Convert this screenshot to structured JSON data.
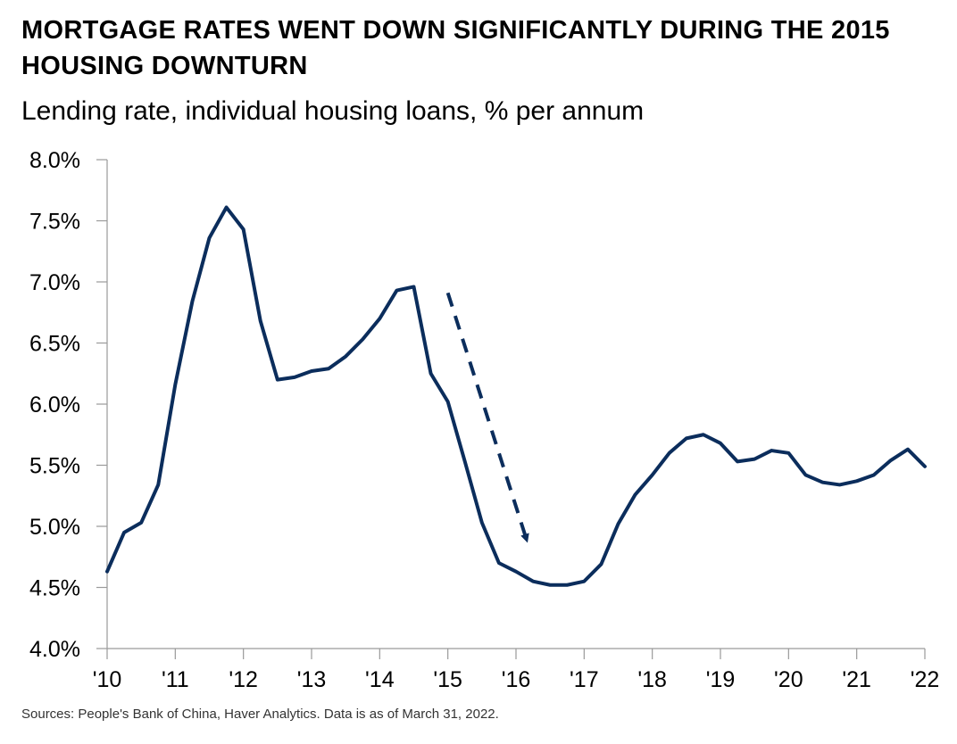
{
  "title": "MORTGAGE RATES WENT DOWN SIGNIFICANTLY DURING THE 2015 HOUSING DOWNTURN",
  "subtitle": "Lending rate, individual housing loans, % per annum",
  "source": "Sources: People's Bank of China, Haver Analytics. Data is as of March 31, 2022.",
  "colors": {
    "line": "#0b2d5c",
    "axis": "#9a9a9a"
  },
  "chart_data": {
    "type": "line",
    "title": "MORTGAGE RATES WENT DOWN SIGNIFICANTLY DURING THE 2015 HOUSING DOWNTURN",
    "subtitle": "Lending rate, individual housing loans, % per annum",
    "xlabel": "",
    "ylabel": "",
    "xlim": [
      2010,
      2022
    ],
    "ylim": [
      4.0,
      8.0
    ],
    "y_ticks": [
      4.0,
      4.5,
      5.0,
      5.5,
      6.0,
      6.5,
      7.0,
      7.5,
      8.0
    ],
    "y_tick_labels": [
      "4.0%",
      "4.5%",
      "5.0%",
      "5.5%",
      "6.0%",
      "6.5%",
      "7.0%",
      "7.5%",
      "8.0%"
    ],
    "x_ticks": [
      2010,
      2011,
      2012,
      2013,
      2014,
      2015,
      2016,
      2017,
      2018,
      2019,
      2020,
      2021,
      2022
    ],
    "x_tick_labels": [
      "'10",
      "'11",
      "'12",
      "'13",
      "'14",
      "'15",
      "'16",
      "'17",
      "'18",
      "'19",
      "'20",
      "'21",
      "'22"
    ],
    "grid": false,
    "series": [
      {
        "x": [
          2010.0,
          2010.25,
          2010.5,
          2010.75,
          2011.0,
          2011.25,
          2011.5,
          2011.75,
          2012.0,
          2012.25,
          2012.5,
          2012.75,
          2013.0,
          2013.25,
          2013.5,
          2013.75,
          2014.0,
          2014.25,
          2014.5,
          2014.75,
          2015.0,
          2015.25,
          2015.5,
          2015.75,
          2016.0,
          2016.25,
          2016.5,
          2016.75,
          2017.0,
          2017.25,
          2017.5,
          2017.75,
          2018.0,
          2018.25,
          2018.5,
          2018.75,
          2019.0,
          2019.25,
          2019.5,
          2019.75,
          2020.0,
          2020.25,
          2020.5,
          2020.75,
          2021.0,
          2021.25,
          2021.5,
          2021.75,
          2022.0
        ],
        "y": [
          4.63,
          4.95,
          5.03,
          5.34,
          6.16,
          6.84,
          7.36,
          7.61,
          7.43,
          6.68,
          6.2,
          6.22,
          6.27,
          6.29,
          6.39,
          6.53,
          6.7,
          6.93,
          6.96,
          6.25,
          6.02,
          5.53,
          5.03,
          4.7,
          4.63,
          4.55,
          4.52,
          4.52,
          4.55,
          4.69,
          5.02,
          5.26,
          5.42,
          5.6,
          5.72,
          5.75,
          5.68,
          5.53,
          5.55,
          5.62,
          5.6,
          5.42,
          5.36,
          5.34,
          5.37,
          5.42,
          5.54,
          5.63,
          5.49
        ]
      }
    ],
    "annotations": [
      {
        "type": "dashed-arrow",
        "from": [
          2015.0,
          6.91
        ],
        "to": [
          2016.15,
          4.9
        ]
      }
    ]
  }
}
